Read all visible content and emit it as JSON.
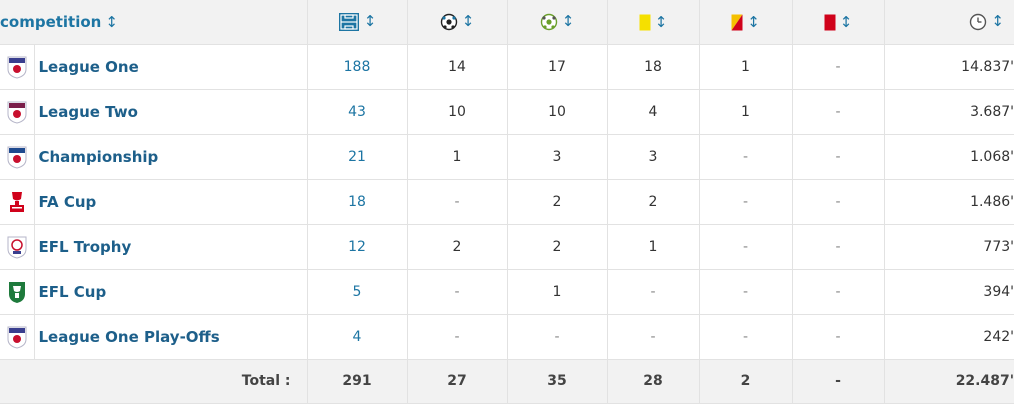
{
  "header": {
    "competition_label": "competition",
    "sort_glyph": "↕",
    "columns": [
      {
        "key": "appearances",
        "icon": "pitch-icon"
      },
      {
        "key": "goals",
        "icon": "football-icon"
      },
      {
        "key": "assists",
        "icon": "assist-ball-icon"
      },
      {
        "key": "yellow_cards",
        "icon": "yellow-card-icon"
      },
      {
        "key": "second_yellow",
        "icon": "yellow-red-card-icon"
      },
      {
        "key": "red_cards",
        "icon": "red-card-icon"
      },
      {
        "key": "minutes",
        "icon": "clock-icon"
      }
    ]
  },
  "rows": [
    {
      "competition": "League One",
      "logo": "league-one-logo-icon",
      "appearances": "188",
      "goals": "14",
      "assists": "17",
      "yellow": "18",
      "second_yellow": "1",
      "red": "-",
      "minutes": "14.837'"
    },
    {
      "competition": "League Two",
      "logo": "league-two-logo-icon",
      "appearances": "43",
      "goals": "10",
      "assists": "10",
      "yellow": "4",
      "second_yellow": "1",
      "red": "-",
      "minutes": "3.687'"
    },
    {
      "competition": "Championship",
      "logo": "championship-logo-icon",
      "appearances": "21",
      "goals": "1",
      "assists": "3",
      "yellow": "3",
      "second_yellow": "-",
      "red": "-",
      "minutes": "1.068'"
    },
    {
      "competition": "FA Cup",
      "logo": "fa-cup-logo-icon",
      "appearances": "18",
      "goals": "-",
      "assists": "2",
      "yellow": "2",
      "second_yellow": "-",
      "red": "-",
      "minutes": "1.486'"
    },
    {
      "competition": "EFL Trophy",
      "logo": "efl-trophy-logo-icon",
      "appearances": "12",
      "goals": "2",
      "assists": "2",
      "yellow": "1",
      "second_yellow": "-",
      "red": "-",
      "minutes": "773'"
    },
    {
      "competition": "EFL Cup",
      "logo": "efl-cup-logo-icon",
      "appearances": "5",
      "goals": "-",
      "assists": "1",
      "yellow": "-",
      "second_yellow": "-",
      "red": "-",
      "minutes": "394'"
    },
    {
      "competition": "League One Play-Offs",
      "logo": "league-one-playoffs-logo-icon",
      "appearances": "4",
      "goals": "-",
      "assists": "-",
      "yellow": "-",
      "second_yellow": "-",
      "red": "-",
      "minutes": "242'"
    }
  ],
  "totals": {
    "label": "Total :",
    "appearances": "291",
    "goals": "27",
    "assists": "35",
    "yellow": "28",
    "second_yellow": "2",
    "red": "-",
    "minutes": "22.487'"
  },
  "colors": {
    "link": "#1d75a3",
    "yellow_card": "#f5e000",
    "red_card": "#d0021b",
    "efl_cup_green": "#1e7a3c"
  }
}
